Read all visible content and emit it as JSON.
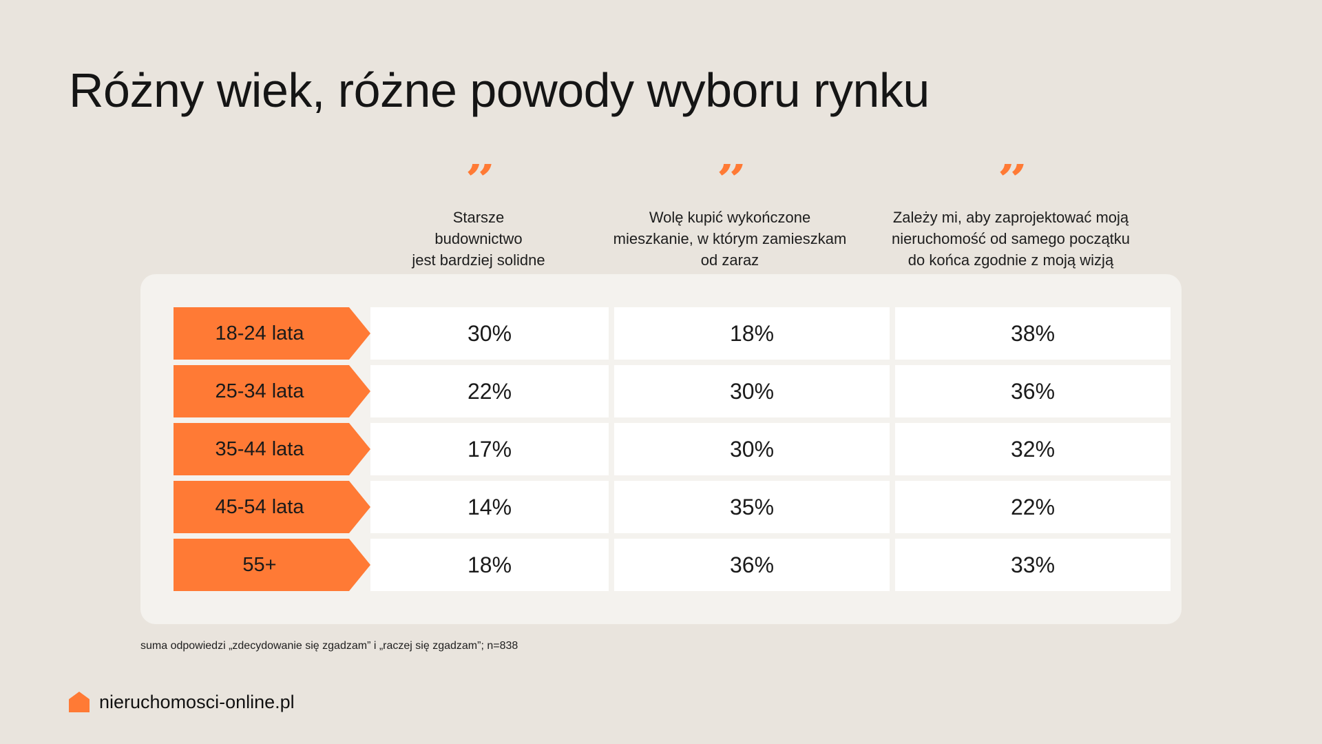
{
  "title": "Różny wiek, różne powody wyboru rynku",
  "colors": {
    "accent": "#ff7a35",
    "background": "#e9e4dd",
    "panel": "#f4f2ee",
    "cell": "#ffffff"
  },
  "quote_mark": "”",
  "chart_data": {
    "type": "table",
    "columns": [
      {
        "lines": [
          "Starsze",
          "budownictwo",
          "jest bardziej solidne"
        ]
      },
      {
        "lines": [
          "Wolę kupić wykończone",
          "mieszkanie, w którym zamieszkam",
          "od zaraz"
        ]
      },
      {
        "lines": [
          "Zależy mi, aby zaprojektować moją",
          "nieruchomość od samego początku",
          "do końca zgodnie z moją wizją"
        ]
      }
    ],
    "rows": [
      {
        "label": "18-24 lata",
        "values": [
          "30%",
          "18%",
          "38%"
        ]
      },
      {
        "label": "25-34 lata",
        "values": [
          "22%",
          "30%",
          "36%"
        ]
      },
      {
        "label": "35-44 lata",
        "values": [
          "17%",
          "30%",
          "32%"
        ]
      },
      {
        "label": "45-54 lata",
        "values": [
          "14%",
          "35%",
          "22%"
        ]
      },
      {
        "label": "55+",
        "values": [
          "18%",
          "36%",
          "33%"
        ]
      }
    ]
  },
  "footnote": "suma odpowiedzi „zdecydowanie się zgadzam” i „raczej się zgadzam”; n=838",
  "brand": {
    "name": "nieruchomosci-online.pl",
    "logo_icon": "house-icon"
  }
}
